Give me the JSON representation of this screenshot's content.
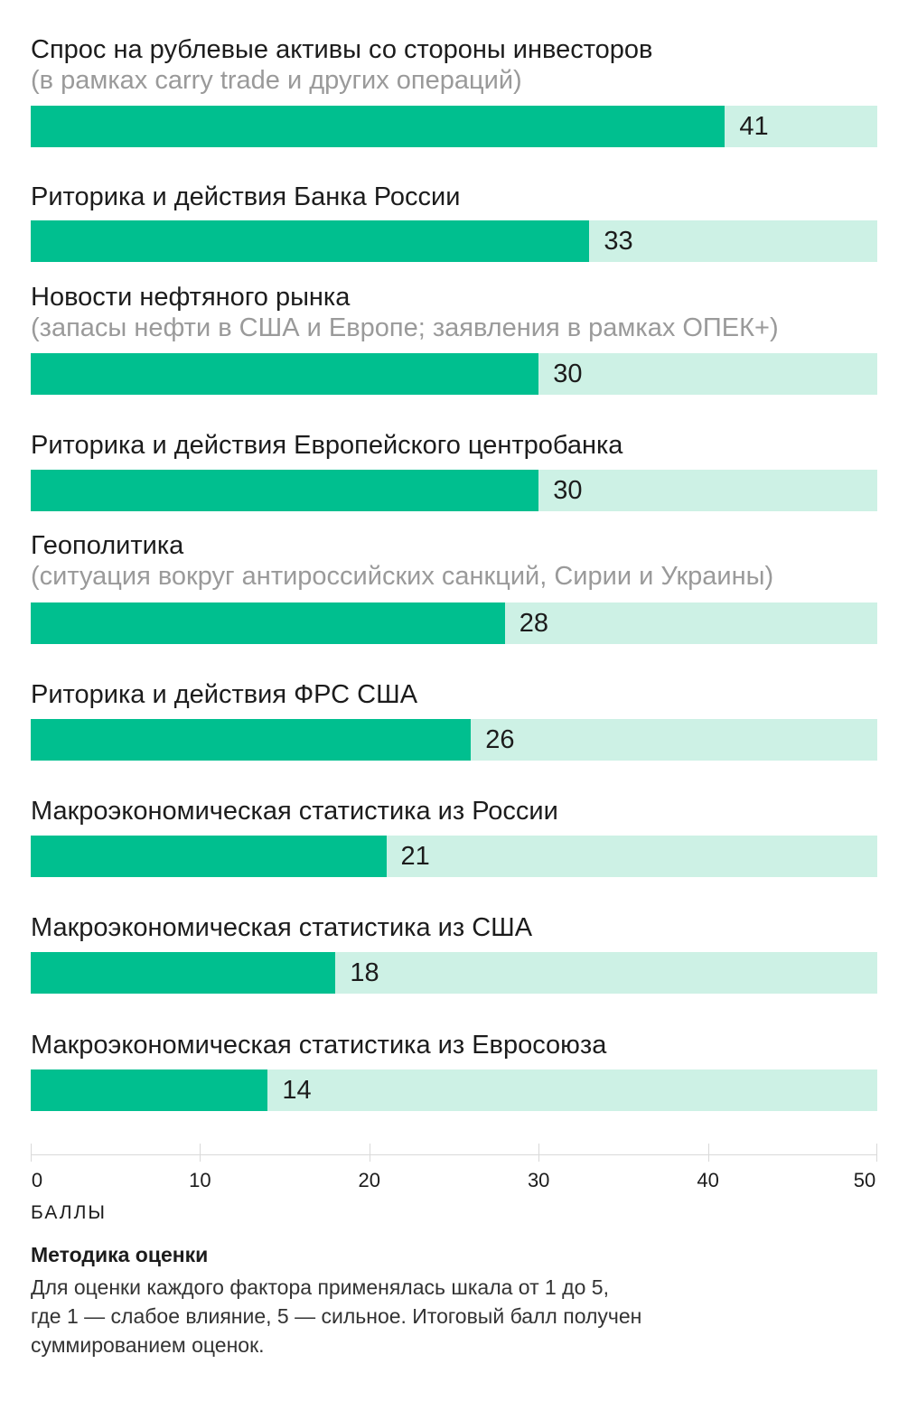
{
  "chart_data": {
    "type": "bar",
    "orientation": "horizontal",
    "xlim": [
      0,
      50
    ],
    "xticks": [
      "0",
      "10",
      "20",
      "30",
      "40",
      "50"
    ],
    "xlabel": "БАЛЛЫ",
    "colors": {
      "fill": "#00bf8f",
      "track": "#cdf1e5"
    },
    "categories": [
      {
        "title": "Спрос на рублевые активы со стороны инвесторов",
        "subtitle": "(в рамках carry trade и других операций)",
        "value": 41
      },
      {
        "title": "Риторика и действия Банка России",
        "subtitle": "",
        "value": 33
      },
      {
        "title": "Новости нефтяного рынка",
        "subtitle": "(запасы нефти в США и Европе; заявления в рамках ОПЕК+)",
        "value": 30
      },
      {
        "title": "Риторика и действия Европейского центробанка",
        "subtitle": "",
        "value": 30
      },
      {
        "title": "Геополитика",
        "subtitle": "(ситуация вокруг антироссийских санкций, Сирии и Украины)",
        "value": 28
      },
      {
        "title": "Риторика и действия ФРС США",
        "subtitle": "",
        "value": 26
      },
      {
        "title": "Макроэкономическая статистика из России",
        "subtitle": "",
        "value": 21
      },
      {
        "title": "Макроэкономическая статистика из США",
        "subtitle": "",
        "value": 18
      },
      {
        "title": "Макроэкономическая статистика из Евросоюза",
        "subtitle": "",
        "value": 14
      }
    ]
  },
  "note": {
    "title": "Методика оценки",
    "line1": "Для оценки каждого фактора применялась шкала от 1 до 5,",
    "line2": "где 1 — слабое влияние, 5 — сильное. Итоговый балл получен",
    "line3": "суммированием оценок."
  }
}
